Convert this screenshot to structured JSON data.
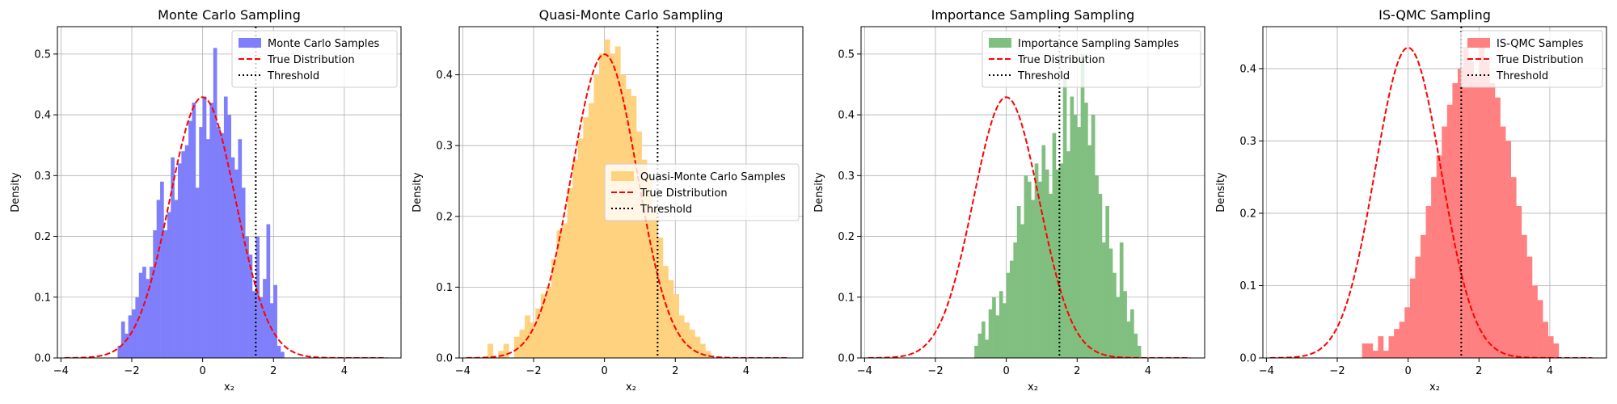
{
  "chart_data": [
    {
      "type": "histogram",
      "title": "Monte Carlo Sampling",
      "xlabel": "x₂",
      "ylabel": "Density",
      "xlim": [
        -4.1,
        5.6
      ],
      "ylim": [
        0,
        0.545
      ],
      "xticks": [
        -4,
        -2,
        0,
        2,
        4
      ],
      "yticks": [
        0.0,
        0.1,
        0.2,
        0.3,
        0.4,
        0.5
      ],
      "grid": true,
      "legend": {
        "placement": "top-right",
        "entries": [
          "Monte Carlo Samples",
          "True Distribution",
          "Threshold"
        ]
      },
      "hist": {
        "name": "Monte Carlo Samples",
        "color": "#7f7ffb",
        "edges": [
          -2.4,
          -2.3,
          -2.2,
          -2.1,
          -2.0,
          -1.9,
          -1.8,
          -1.7,
          -1.6,
          -1.5,
          -1.4,
          -1.3,
          -1.2,
          -1.1,
          -1.0,
          -0.9,
          -0.8,
          -0.7,
          -0.6,
          -0.5,
          -0.4,
          -0.3,
          -0.2,
          -0.1,
          0.0,
          0.1,
          0.2,
          0.3,
          0.4,
          0.5,
          0.6,
          0.7,
          0.8,
          0.9,
          1.0,
          1.1,
          1.2,
          1.3,
          1.4,
          1.5,
          1.6,
          1.7,
          1.8,
          1.9,
          2.0,
          2.1,
          2.2,
          2.3
        ],
        "values": [
          0.02,
          0.06,
          0.04,
          0.07,
          0.08,
          0.1,
          0.14,
          0.15,
          0.13,
          0.15,
          0.21,
          0.26,
          0.29,
          0.21,
          0.24,
          0.33,
          0.26,
          0.32,
          0.34,
          0.35,
          0.39,
          0.42,
          0.28,
          0.38,
          0.43,
          0.36,
          0.42,
          0.51,
          0.38,
          0.37,
          0.43,
          0.4,
          0.33,
          0.31,
          0.36,
          0.28,
          0.2,
          0.17,
          0.11,
          0.2,
          0.1,
          0.13,
          0.22,
          0.09,
          0.12,
          0.02,
          0.01
        ]
      },
      "true_distribution": {
        "name": "True Distribution",
        "color": "#ff0000",
        "mean": 0.0,
        "sd": 0.93,
        "x_range": [
          -3.9,
          5.2
        ]
      },
      "threshold": {
        "name": "Threshold",
        "x": 1.5,
        "color": "#000000"
      }
    },
    {
      "type": "histogram",
      "title": "Quasi-Monte Carlo Sampling",
      "xlabel": "x₂",
      "ylabel": "Density",
      "xlim": [
        -4.1,
        5.6
      ],
      "ylim": [
        0,
        0.468
      ],
      "xticks": [
        -4,
        -2,
        0,
        2,
        4
      ],
      "yticks": [
        0.0,
        0.1,
        0.2,
        0.3,
        0.4
      ],
      "grid": true,
      "legend": {
        "placement": "center-right",
        "entries": [
          "Quasi-Monte Carlo Samples",
          "True Distribution",
          "Threshold"
        ]
      },
      "hist": {
        "name": "Quasi-Monte Carlo Samples",
        "color": "#ffd280",
        "edges": [
          -3.3,
          -3.15,
          -3.0,
          -2.85,
          -2.7,
          -2.55,
          -2.4,
          -2.25,
          -2.1,
          -1.95,
          -1.8,
          -1.65,
          -1.5,
          -1.35,
          -1.2,
          -1.05,
          -0.9,
          -0.75,
          -0.6,
          -0.45,
          -0.3,
          -0.15,
          0.0,
          0.15,
          0.3,
          0.45,
          0.6,
          0.75,
          0.9,
          1.05,
          1.2,
          1.35,
          1.5,
          1.65,
          1.8,
          1.95,
          2.1,
          2.25,
          2.4,
          2.55,
          2.7,
          2.85,
          3.0,
          3.15
        ],
        "values": [
          0.02,
          0.0,
          0.01,
          0.02,
          0.0,
          0.03,
          0.04,
          0.06,
          0.05,
          0.07,
          0.09,
          0.1,
          0.14,
          0.18,
          0.19,
          0.24,
          0.28,
          0.31,
          0.34,
          0.36,
          0.4,
          0.43,
          0.45,
          0.43,
          0.44,
          0.4,
          0.38,
          0.37,
          0.32,
          0.28,
          0.26,
          0.21,
          0.17,
          0.13,
          0.11,
          0.09,
          0.06,
          0.05,
          0.04,
          0.03,
          0.02,
          0.01,
          0.0
        ]
      },
      "true_distribution": {
        "name": "True Distribution",
        "color": "#ff0000",
        "mean": 0.0,
        "sd": 0.93,
        "x_range": [
          -3.9,
          5.2
        ]
      },
      "threshold": {
        "name": "Threshold",
        "x": 1.5,
        "color": "#000000"
      }
    },
    {
      "type": "histogram",
      "title": "Importance Sampling Sampling",
      "xlabel": "x₂",
      "ylabel": "Density",
      "xlim": [
        -4.1,
        5.6
      ],
      "ylim": [
        0,
        0.545
      ],
      "xticks": [
        -4,
        -2,
        0,
        2,
        4
      ],
      "yticks": [
        0.0,
        0.1,
        0.2,
        0.3,
        0.4,
        0.5
      ],
      "grid": true,
      "legend": {
        "placement": "top-right",
        "entries": [
          "Importance Sampling Samples",
          "True Distribution",
          "Threshold"
        ]
      },
      "hist": {
        "name": "Importance Sampling Samples",
        "color": "#80bf80",
        "edges": [
          -0.9,
          -0.8,
          -0.7,
          -0.6,
          -0.5,
          -0.4,
          -0.3,
          -0.2,
          -0.1,
          0.0,
          0.1,
          0.2,
          0.3,
          0.4,
          0.5,
          0.6,
          0.7,
          0.8,
          0.9,
          1.0,
          1.1,
          1.2,
          1.3,
          1.4,
          1.5,
          1.6,
          1.7,
          1.8,
          1.9,
          2.0,
          2.1,
          2.2,
          2.3,
          2.4,
          2.5,
          2.6,
          2.7,
          2.8,
          2.9,
          3.0,
          3.1,
          3.2,
          3.3,
          3.4,
          3.5,
          3.6,
          3.7,
          3.8
        ],
        "values": [
          0.02,
          0.04,
          0.06,
          0.03,
          0.08,
          0.1,
          0.07,
          0.11,
          0.09,
          0.14,
          0.16,
          0.19,
          0.25,
          0.22,
          0.3,
          0.29,
          0.26,
          0.32,
          0.29,
          0.35,
          0.31,
          0.27,
          0.37,
          0.31,
          0.32,
          0.46,
          0.34,
          0.43,
          0.4,
          0.38,
          0.5,
          0.42,
          0.35,
          0.4,
          0.3,
          0.27,
          0.19,
          0.25,
          0.18,
          0.14,
          0.1,
          0.19,
          0.11,
          0.06,
          0.08,
          0.04,
          0.02
        ]
      },
      "true_distribution": {
        "name": "True Distribution",
        "color": "#ff0000",
        "mean": 0.0,
        "sd": 0.93,
        "x_range": [
          -3.9,
          5.2
        ]
      },
      "threshold": {
        "name": "Threshold",
        "x": 1.5,
        "color": "#000000"
      }
    },
    {
      "type": "histogram",
      "title": "IS-QMC Sampling",
      "xlabel": "x₂",
      "ylabel": "Density",
      "xlim": [
        -4.1,
        5.6
      ],
      "ylim": [
        0,
        0.458
      ],
      "xticks": [
        -4,
        -2,
        0,
        2,
        4
      ],
      "yticks": [
        0.0,
        0.1,
        0.2,
        0.3,
        0.4
      ],
      "grid": true,
      "legend": {
        "placement": "top-right",
        "entries": [
          "IS-QMC Samples",
          "True Distribution",
          "Threshold"
        ]
      },
      "hist": {
        "name": "IS-QMC Samples",
        "color": "#ff8080",
        "edges": [
          -1.3,
          -1.15,
          -1.0,
          -0.85,
          -0.7,
          -0.55,
          -0.4,
          -0.25,
          -0.1,
          0.05,
          0.2,
          0.35,
          0.5,
          0.65,
          0.8,
          0.95,
          1.1,
          1.25,
          1.4,
          1.55,
          1.7,
          1.85,
          2.0,
          2.15,
          2.3,
          2.45,
          2.6,
          2.75,
          2.9,
          3.05,
          3.2,
          3.35,
          3.5,
          3.65,
          3.8,
          3.95,
          4.1,
          4.25
        ],
        "values": [
          0.02,
          0.02,
          0.01,
          0.03,
          0.01,
          0.03,
          0.04,
          0.05,
          0.07,
          0.11,
          0.14,
          0.17,
          0.21,
          0.25,
          0.28,
          0.32,
          0.35,
          0.38,
          0.4,
          0.43,
          0.41,
          0.39,
          0.43,
          0.41,
          0.38,
          0.36,
          0.32,
          0.3,
          0.25,
          0.21,
          0.17,
          0.14,
          0.1,
          0.08,
          0.05,
          0.03,
          0.02
        ]
      },
      "true_distribution": {
        "name": "True Distribution",
        "color": "#ff0000",
        "mean": 0.0,
        "sd": 0.93,
        "x_range": [
          -3.9,
          5.2
        ]
      },
      "threshold": {
        "name": "Threshold",
        "x": 1.5,
        "color": "#000000"
      }
    }
  ]
}
